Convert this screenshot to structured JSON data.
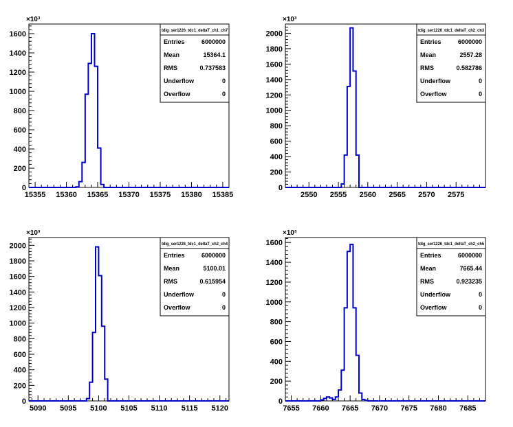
{
  "chart_data": [
    {
      "type": "bar",
      "title": "",
      "xlabel": "",
      "ylabel": "",
      "y_exponent": "×10³",
      "xlim": [
        15354,
        15386
      ],
      "ylim": [
        0,
        1700
      ],
      "xticks": [
        15355,
        15360,
        15365,
        15370,
        15375,
        15380,
        15385
      ],
      "yticks": [
        0,
        200,
        400,
        600,
        800,
        1000,
        1200,
        1400,
        1600
      ],
      "bin_width": 0.5,
      "bin_edges": [
        15361.5,
        15362.0,
        15362.5,
        15363.0,
        15363.5,
        15364.0,
        15364.5,
        15365.0,
        15365.5,
        15366.0
      ],
      "values": [
        5,
        60,
        260,
        970,
        1290,
        1600,
        1260,
        410,
        30
      ],
      "stats": {
        "name": "tdig_ser1226_tdc1_deltaT_ch1_ch7",
        "rows": [
          {
            "label": "Entries",
            "value": "6000000"
          },
          {
            "label": "Mean",
            "value": "15364.1"
          },
          {
            "label": "RMS",
            "value": "0.737583"
          },
          {
            "label": "Underflow",
            "value": "0"
          },
          {
            "label": "Overflow",
            "value": "0"
          }
        ]
      }
    },
    {
      "type": "bar",
      "title": "",
      "xlabel": "",
      "ylabel": "",
      "y_exponent": "×10³",
      "xlim": [
        2546,
        2580
      ],
      "ylim": [
        0,
        2120
      ],
      "xticks": [
        2550,
        2555,
        2560,
        2565,
        2570,
        2575
      ],
      "yticks": [
        0,
        200,
        400,
        600,
        800,
        1000,
        1200,
        1400,
        1600,
        1800,
        2000
      ],
      "bin_width": 0.5,
      "bin_edges": [
        2555.5,
        2556.0,
        2556.5,
        2557.0,
        2557.5,
        2558.0,
        2558.5
      ],
      "values": [
        45,
        420,
        1310,
        2070,
        1510,
        420
      ],
      "stats": {
        "name": "tdig_ser1226_tdc1_deltaT_ch2_ch3",
        "rows": [
          {
            "label": "Entries",
            "value": "6000000"
          },
          {
            "label": "Mean",
            "value": "2557.28"
          },
          {
            "label": "RMS",
            "value": "0.582786"
          },
          {
            "label": "Underflow",
            "value": "0"
          },
          {
            "label": "Overflow",
            "value": "0"
          }
        ]
      }
    },
    {
      "type": "bar",
      "title": "",
      "xlabel": "",
      "ylabel": "",
      "y_exponent": "×10³",
      "xlim": [
        5088.5,
        5121.5
      ],
      "ylim": [
        0,
        2100
      ],
      "xticks": [
        5090,
        5095,
        5100,
        5105,
        5110,
        5115,
        5120
      ],
      "yticks": [
        0,
        200,
        400,
        600,
        800,
        1000,
        1200,
        1400,
        1600,
        1800,
        2000
      ],
      "bin_width": 0.5,
      "bin_edges": [
        5098.0,
        5098.5,
        5099.0,
        5099.5,
        5100.0,
        5100.5,
        5101.0,
        5101.5
      ],
      "values": [
        30,
        240,
        880,
        1980,
        1610,
        960,
        280
      ],
      "stats": {
        "name": "tdig_ser1226_tdc1_deltaT_ch2_ch4",
        "rows": [
          {
            "label": "Entries",
            "value": "6000000"
          },
          {
            "label": "Mean",
            "value": "5100.01"
          },
          {
            "label": "RMS",
            "value": "0.615954"
          },
          {
            "label": "Underflow",
            "value": "0"
          },
          {
            "label": "Overflow",
            "value": "0"
          }
        ]
      }
    },
    {
      "type": "bar",
      "title": "",
      "xlabel": "",
      "ylabel": "",
      "y_exponent": "×10³",
      "xlim": [
        7654,
        7688
      ],
      "ylim": [
        0,
        1650
      ],
      "xticks": [
        7655,
        7660,
        7665,
        7670,
        7675,
        7680,
        7685
      ],
      "yticks": [
        0,
        200,
        400,
        600,
        800,
        1000,
        1200,
        1400,
        1600
      ],
      "bin_width": 0.5,
      "bin_edges": [
        7660.0,
        7660.5,
        7661.0,
        7661.5,
        7662.0,
        7662.5,
        7663.0,
        7663.5,
        7664.0,
        7664.5,
        7665.0,
        7665.5,
        7666.0,
        7666.5,
        7667.0,
        7667.5,
        7668.0
      ],
      "values": [
        10,
        25,
        40,
        30,
        15,
        40,
        110,
        310,
        940,
        1510,
        1580,
        940,
        460,
        80,
        15,
        5
      ],
      "stats": {
        "name": "tdig_ser1226_tdc1_deltaT_ch2_ch5",
        "rows": [
          {
            "label": "Entries",
            "value": "6000000"
          },
          {
            "label": "Mean",
            "value": "7665.44"
          },
          {
            "label": "RMS",
            "value": "0.923235"
          },
          {
            "label": "Underflow",
            "value": "0"
          },
          {
            "label": "Overflow",
            "value": "0"
          }
        ]
      }
    }
  ],
  "colors": {
    "histogram_line": "#0000cc",
    "axis": "#000000",
    "background": "#ffffff"
  }
}
